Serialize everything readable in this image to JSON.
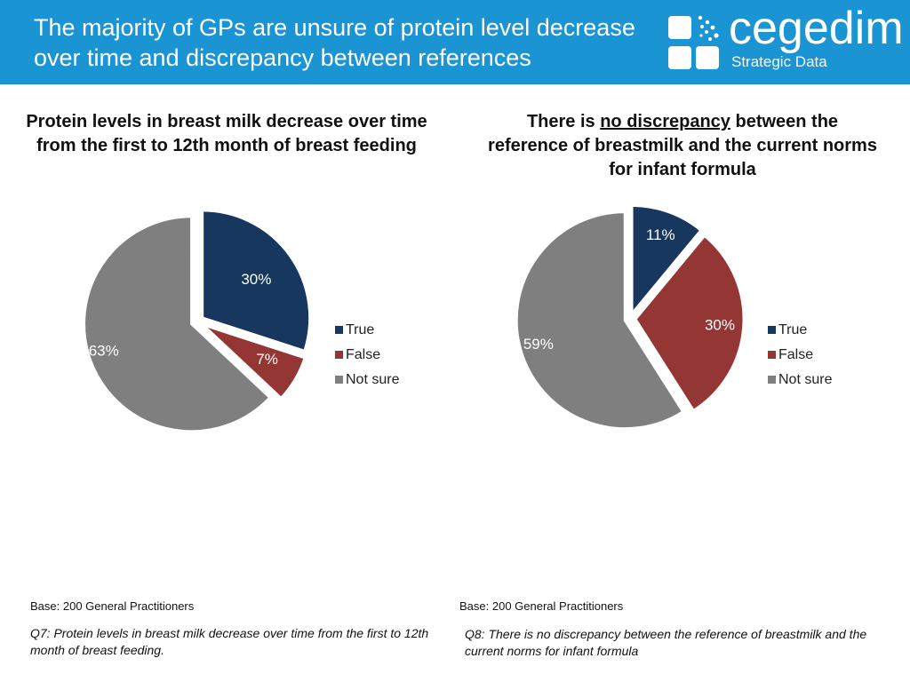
{
  "header": {
    "title_line1": "The majority of GPs are unsure of protein level decrease",
    "title_line2": "over time and discrepancy between references",
    "brand_name": "cegedim",
    "brand_sub": "Strategic Data"
  },
  "colors": {
    "header_bg": "#1a94d2",
    "true": "#17375e",
    "false": "#943634",
    "not_sure": "#7f7f7f"
  },
  "chart_data": [
    {
      "type": "pie",
      "title": "Protein levels in breast milk decrease over time from the first to 12th month of breast feeding",
      "categories": [
        "True",
        "False",
        "Not sure"
      ],
      "values": [
        30,
        7,
        63
      ],
      "labels": [
        "30%",
        "7%",
        "63%"
      ],
      "legend": [
        "True",
        "False",
        "Not sure"
      ],
      "legend_position": "right",
      "exploded": true
    },
    {
      "type": "pie",
      "title_pre": "There is ",
      "title_underlined": "no discrepancy",
      "title_post": " between the reference of breastmilk and the current norms for infant formula",
      "categories": [
        "True",
        "False",
        "Not sure"
      ],
      "values": [
        11,
        30,
        59
      ],
      "labels": [
        "11%",
        "30%",
        "59%"
      ],
      "legend": [
        "True",
        "False",
        "Not sure"
      ],
      "legend_position": "right",
      "exploded": true
    }
  ],
  "footer": {
    "left_base": "Base: 200 General Practitioners",
    "left_question": "Q7: Protein levels in breast milk decrease over time from the first to 12th month of breast feeding.",
    "right_base": "Base: 200 General Practitioners",
    "right_question": "Q8: There is no discrepancy between the reference of breastmilk and the current norms for infant formula"
  }
}
